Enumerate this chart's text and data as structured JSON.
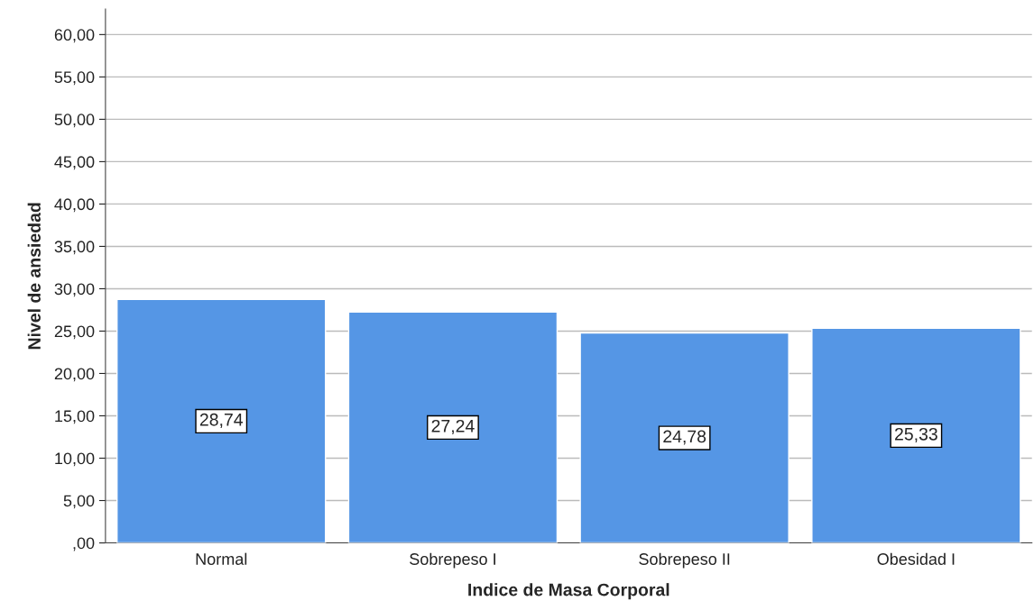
{
  "chart_data": {
    "type": "bar",
    "xlabel": "Indice de Masa Corporal",
    "ylabel": "Nivel de ansiedad",
    "categories": [
      "Normal",
      "Sobrepeso I",
      "Sobrepeso II",
      "Obesidad I"
    ],
    "values": [
      28.74,
      27.24,
      24.78,
      25.33
    ],
    "value_labels": [
      "28,74",
      "27,24",
      "24,78",
      "25,33"
    ],
    "color": "#5596e5",
    "ylim": [
      0,
      63
    ],
    "yticks": [
      {
        "value": 0,
        "label": ",00"
      },
      {
        "value": 5,
        "label": "5,00"
      },
      {
        "value": 10,
        "label": "10,00"
      },
      {
        "value": 15,
        "label": "15,00"
      },
      {
        "value": 20,
        "label": "20,00"
      },
      {
        "value": 25,
        "label": "25,00"
      },
      {
        "value": 30,
        "label": "30,00"
      },
      {
        "value": 35,
        "label": "35,00"
      },
      {
        "value": 40,
        "label": "40,00"
      },
      {
        "value": 45,
        "label": "45,00"
      },
      {
        "value": 50,
        "label": "50,00"
      },
      {
        "value": 55,
        "label": "55,00"
      },
      {
        "value": 60,
        "label": "60,00"
      }
    ],
    "grid": "y",
    "legend": false
  }
}
